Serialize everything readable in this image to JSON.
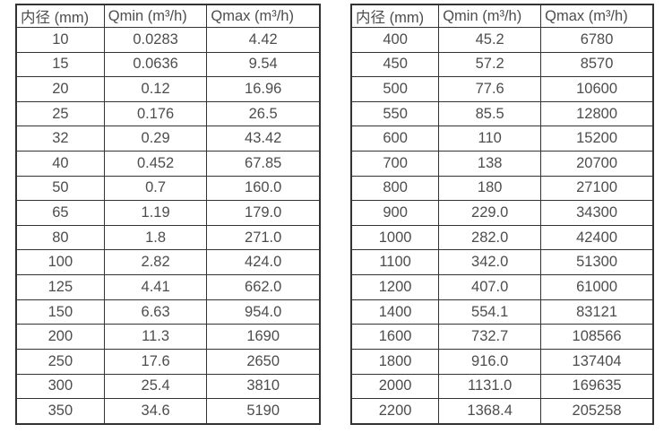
{
  "page": {
    "background": "#ffffff",
    "text_color": "#4d4d4d",
    "border_color": "#333333"
  },
  "tables": [
    {
      "name": "flow-spec-small-diameters",
      "headers": [
        "内径 (mm)",
        "Qmin (m³/h)",
        "Qmax (m³/h)"
      ],
      "rows": [
        [
          "10",
          "0.0283",
          "4.42"
        ],
        [
          "15",
          "0.0636",
          "9.54"
        ],
        [
          "20",
          "0.12",
          "16.96"
        ],
        [
          "25",
          "0.176",
          "26.5"
        ],
        [
          "32",
          "0.29",
          "43.42"
        ],
        [
          "40",
          "0.452",
          "67.85"
        ],
        [
          "50",
          "0.7",
          "160.0"
        ],
        [
          "65",
          "1.19",
          "179.0"
        ],
        [
          "80",
          "1.8",
          "271.0"
        ],
        [
          "100",
          "2.82",
          "424.0"
        ],
        [
          "125",
          "4.41",
          "662.0"
        ],
        [
          "150",
          "6.63",
          "954.0"
        ],
        [
          "200",
          "11.3",
          "1690"
        ],
        [
          "250",
          "17.6",
          "2650"
        ],
        [
          "300",
          "25.4",
          "3810"
        ],
        [
          "350",
          "34.6",
          "5190"
        ]
      ]
    },
    {
      "name": "flow-spec-large-diameters",
      "headers": [
        "内径 (mm)",
        "Qmin (m³/h)",
        "Qmax (m³/h)"
      ],
      "rows": [
        [
          "400",
          "45.2",
          "6780"
        ],
        [
          "450",
          "57.2",
          "8570"
        ],
        [
          "500",
          "77.6",
          "10600"
        ],
        [
          "550",
          "85.5",
          "12800"
        ],
        [
          "600",
          "110",
          "15200"
        ],
        [
          "700",
          "138",
          "20700"
        ],
        [
          "800",
          "180",
          "27100"
        ],
        [
          "900",
          "229.0",
          "34300"
        ],
        [
          "1000",
          "282.0",
          "42400"
        ],
        [
          "1100",
          "342.0",
          "51300"
        ],
        [
          "1200",
          "407.0",
          "61000"
        ],
        [
          "1400",
          "554.1",
          "83121"
        ],
        [
          "1600",
          "732.7",
          "108566"
        ],
        [
          "1800",
          "916.0",
          "137404"
        ],
        [
          "2000",
          "1131.0",
          "169635"
        ],
        [
          "2200",
          "1368.4",
          "205258"
        ]
      ]
    }
  ]
}
